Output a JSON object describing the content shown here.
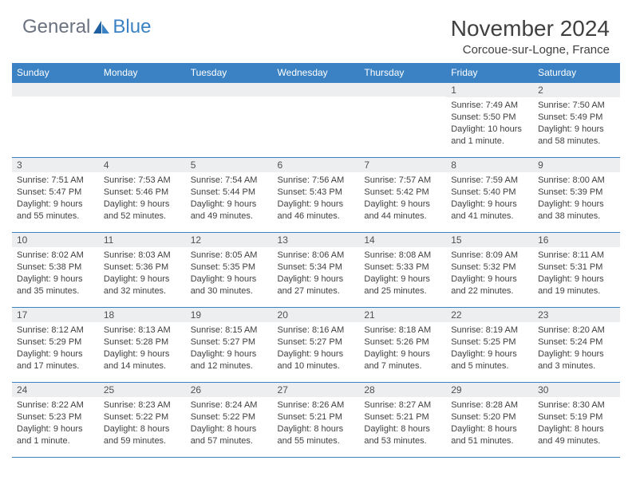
{
  "logo": {
    "text1": "General",
    "text2": "Blue"
  },
  "title": "November 2024",
  "location": "Corcoue-sur-Logne, France",
  "colors": {
    "header_bg": "#3b82c4",
    "header_text": "#ffffff",
    "daynum_bg": "#eceef0",
    "border": "#3b82c4",
    "body_text": "#404040",
    "logo_gray": "#6b7280",
    "logo_blue": "#3b82c4",
    "background": "#ffffff"
  },
  "weekdays": [
    "Sunday",
    "Monday",
    "Tuesday",
    "Wednesday",
    "Thursday",
    "Friday",
    "Saturday"
  ],
  "weeks": [
    [
      {
        "n": "",
        "sr": "",
        "ss": "",
        "dl": ""
      },
      {
        "n": "",
        "sr": "",
        "ss": "",
        "dl": ""
      },
      {
        "n": "",
        "sr": "",
        "ss": "",
        "dl": ""
      },
      {
        "n": "",
        "sr": "",
        "ss": "",
        "dl": ""
      },
      {
        "n": "",
        "sr": "",
        "ss": "",
        "dl": ""
      },
      {
        "n": "1",
        "sr": "Sunrise: 7:49 AM",
        "ss": "Sunset: 5:50 PM",
        "dl": "Daylight: 10 hours and 1 minute."
      },
      {
        "n": "2",
        "sr": "Sunrise: 7:50 AM",
        "ss": "Sunset: 5:49 PM",
        "dl": "Daylight: 9 hours and 58 minutes."
      }
    ],
    [
      {
        "n": "3",
        "sr": "Sunrise: 7:51 AM",
        "ss": "Sunset: 5:47 PM",
        "dl": "Daylight: 9 hours and 55 minutes."
      },
      {
        "n": "4",
        "sr": "Sunrise: 7:53 AM",
        "ss": "Sunset: 5:46 PM",
        "dl": "Daylight: 9 hours and 52 minutes."
      },
      {
        "n": "5",
        "sr": "Sunrise: 7:54 AM",
        "ss": "Sunset: 5:44 PM",
        "dl": "Daylight: 9 hours and 49 minutes."
      },
      {
        "n": "6",
        "sr": "Sunrise: 7:56 AM",
        "ss": "Sunset: 5:43 PM",
        "dl": "Daylight: 9 hours and 46 minutes."
      },
      {
        "n": "7",
        "sr": "Sunrise: 7:57 AM",
        "ss": "Sunset: 5:42 PM",
        "dl": "Daylight: 9 hours and 44 minutes."
      },
      {
        "n": "8",
        "sr": "Sunrise: 7:59 AM",
        "ss": "Sunset: 5:40 PM",
        "dl": "Daylight: 9 hours and 41 minutes."
      },
      {
        "n": "9",
        "sr": "Sunrise: 8:00 AM",
        "ss": "Sunset: 5:39 PM",
        "dl": "Daylight: 9 hours and 38 minutes."
      }
    ],
    [
      {
        "n": "10",
        "sr": "Sunrise: 8:02 AM",
        "ss": "Sunset: 5:38 PM",
        "dl": "Daylight: 9 hours and 35 minutes."
      },
      {
        "n": "11",
        "sr": "Sunrise: 8:03 AM",
        "ss": "Sunset: 5:36 PM",
        "dl": "Daylight: 9 hours and 32 minutes."
      },
      {
        "n": "12",
        "sr": "Sunrise: 8:05 AM",
        "ss": "Sunset: 5:35 PM",
        "dl": "Daylight: 9 hours and 30 minutes."
      },
      {
        "n": "13",
        "sr": "Sunrise: 8:06 AM",
        "ss": "Sunset: 5:34 PM",
        "dl": "Daylight: 9 hours and 27 minutes."
      },
      {
        "n": "14",
        "sr": "Sunrise: 8:08 AM",
        "ss": "Sunset: 5:33 PM",
        "dl": "Daylight: 9 hours and 25 minutes."
      },
      {
        "n": "15",
        "sr": "Sunrise: 8:09 AM",
        "ss": "Sunset: 5:32 PM",
        "dl": "Daylight: 9 hours and 22 minutes."
      },
      {
        "n": "16",
        "sr": "Sunrise: 8:11 AM",
        "ss": "Sunset: 5:31 PM",
        "dl": "Daylight: 9 hours and 19 minutes."
      }
    ],
    [
      {
        "n": "17",
        "sr": "Sunrise: 8:12 AM",
        "ss": "Sunset: 5:29 PM",
        "dl": "Daylight: 9 hours and 17 minutes."
      },
      {
        "n": "18",
        "sr": "Sunrise: 8:13 AM",
        "ss": "Sunset: 5:28 PM",
        "dl": "Daylight: 9 hours and 14 minutes."
      },
      {
        "n": "19",
        "sr": "Sunrise: 8:15 AM",
        "ss": "Sunset: 5:27 PM",
        "dl": "Daylight: 9 hours and 12 minutes."
      },
      {
        "n": "20",
        "sr": "Sunrise: 8:16 AM",
        "ss": "Sunset: 5:27 PM",
        "dl": "Daylight: 9 hours and 10 minutes."
      },
      {
        "n": "21",
        "sr": "Sunrise: 8:18 AM",
        "ss": "Sunset: 5:26 PM",
        "dl": "Daylight: 9 hours and 7 minutes."
      },
      {
        "n": "22",
        "sr": "Sunrise: 8:19 AM",
        "ss": "Sunset: 5:25 PM",
        "dl": "Daylight: 9 hours and 5 minutes."
      },
      {
        "n": "23",
        "sr": "Sunrise: 8:20 AM",
        "ss": "Sunset: 5:24 PM",
        "dl": "Daylight: 9 hours and 3 minutes."
      }
    ],
    [
      {
        "n": "24",
        "sr": "Sunrise: 8:22 AM",
        "ss": "Sunset: 5:23 PM",
        "dl": "Daylight: 9 hours and 1 minute."
      },
      {
        "n": "25",
        "sr": "Sunrise: 8:23 AM",
        "ss": "Sunset: 5:22 PM",
        "dl": "Daylight: 8 hours and 59 minutes."
      },
      {
        "n": "26",
        "sr": "Sunrise: 8:24 AM",
        "ss": "Sunset: 5:22 PM",
        "dl": "Daylight: 8 hours and 57 minutes."
      },
      {
        "n": "27",
        "sr": "Sunrise: 8:26 AM",
        "ss": "Sunset: 5:21 PM",
        "dl": "Daylight: 8 hours and 55 minutes."
      },
      {
        "n": "28",
        "sr": "Sunrise: 8:27 AM",
        "ss": "Sunset: 5:21 PM",
        "dl": "Daylight: 8 hours and 53 minutes."
      },
      {
        "n": "29",
        "sr": "Sunrise: 8:28 AM",
        "ss": "Sunset: 5:20 PM",
        "dl": "Daylight: 8 hours and 51 minutes."
      },
      {
        "n": "30",
        "sr": "Sunrise: 8:30 AM",
        "ss": "Sunset: 5:19 PM",
        "dl": "Daylight: 8 hours and 49 minutes."
      }
    ]
  ]
}
